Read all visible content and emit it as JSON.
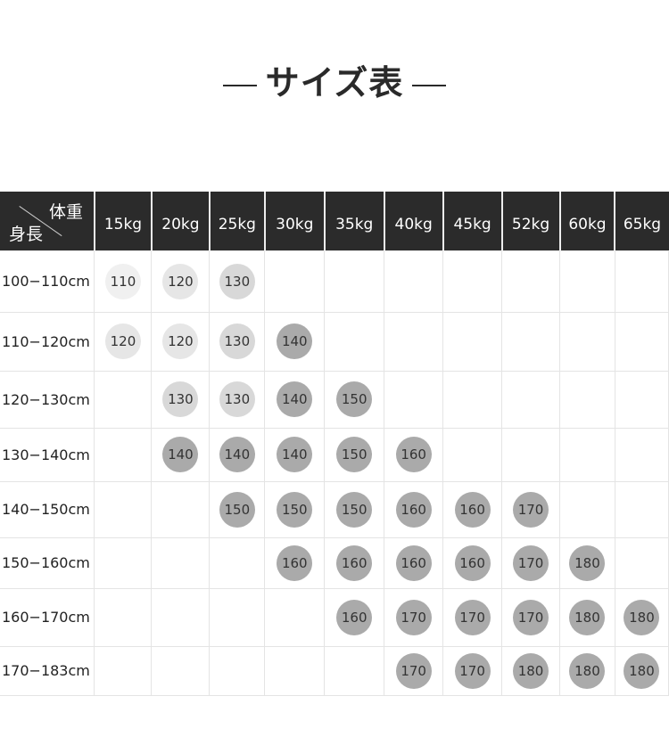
{
  "title": "サイズ表",
  "table": {
    "corner_weight": "体重",
    "corner_height": "身長",
    "columns": [
      "15kg",
      "20kg",
      "25kg",
      "30kg",
      "35kg",
      "40kg",
      "45kg",
      "52kg",
      "60kg",
      "65kg"
    ],
    "rows": [
      {
        "label": "100−110cm",
        "cells": [
          "110",
          "120",
          "130",
          "",
          "",
          "",
          "",
          "",
          "",
          ""
        ]
      },
      {
        "label": "110−120cm",
        "cells": [
          "120",
          "120",
          "130",
          "140",
          "",
          "",
          "",
          "",
          "",
          ""
        ]
      },
      {
        "label": "120−130cm",
        "cells": [
          "",
          "130",
          "130",
          "140",
          "150",
          "",
          "",
          "",
          "",
          ""
        ]
      },
      {
        "label": "130−140cm",
        "cells": [
          "",
          "140",
          "140",
          "140",
          "150",
          "160",
          "",
          "",
          "",
          ""
        ]
      },
      {
        "label": "140−150cm",
        "cells": [
          "",
          "",
          "150",
          "150",
          "150",
          "160",
          "160",
          "170",
          "",
          ""
        ]
      },
      {
        "label": "150−160cm",
        "cells": [
          "",
          "",
          "",
          "160",
          "160",
          "160",
          "160",
          "170",
          "180",
          ""
        ]
      },
      {
        "label": "160−170cm",
        "cells": [
          "",
          "",
          "",
          "",
          "160",
          "170",
          "170",
          "170",
          "180",
          "180"
        ]
      },
      {
        "label": "170−183cm",
        "cells": [
          "",
          "",
          "",
          "",
          "",
          "170",
          "170",
          "180",
          "180",
          "180"
        ]
      }
    ]
  },
  "colors": {
    "header_bg": "#2b2b2b",
    "size_110": "#f0f0f0",
    "size_120": "#e6e6e6",
    "size_130": "#d8d8d8",
    "size_140_plus": "#aaaaaa"
  }
}
